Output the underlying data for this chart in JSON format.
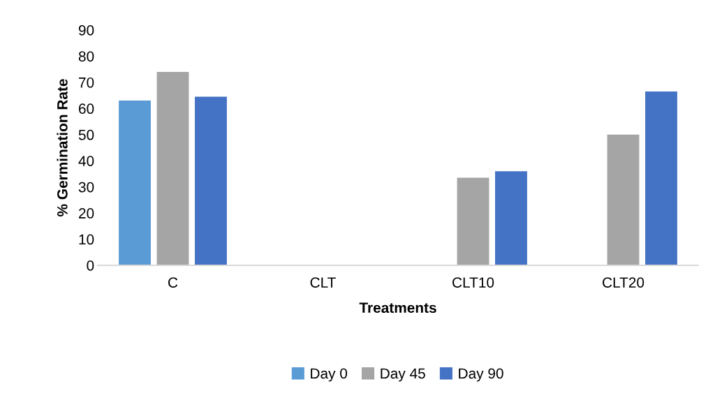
{
  "chart_data": {
    "type": "bar",
    "xlabel": "Treatments",
    "ylabel": "% Germination Rate",
    "categories": [
      "C",
      "CLT",
      "CLT10",
      "CLT20"
    ],
    "series": [
      {
        "name": "Day 0",
        "color": "#5b9bd5",
        "values": [
          63,
          0,
          0,
          0
        ]
      },
      {
        "name": "Day 45",
        "color": "#a5a5a5",
        "values": [
          74,
          0,
          33.5,
          50
        ]
      },
      {
        "name": "Day 90",
        "color": "#4472c4",
        "values": [
          64.5,
          0,
          36,
          66.5
        ]
      }
    ],
    "ylim": [
      0,
      90
    ],
    "yticks": [
      0,
      10,
      20,
      30,
      40,
      50,
      60,
      70,
      80,
      90
    ],
    "grid": false,
    "legend": "bottom"
  }
}
